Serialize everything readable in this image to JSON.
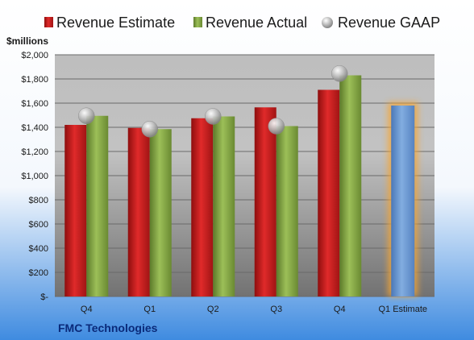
{
  "chart_data": {
    "type": "bar",
    "categories": [
      "Q4",
      "Q1",
      "Q2",
      "Q3",
      "Q4",
      "Q1 Estimate"
    ],
    "series": [
      {
        "name": "Revenue Estimate",
        "kind": "bar",
        "color": "#D42020",
        "values": [
          1420,
          1395,
          1475,
          1565,
          1710,
          null
        ]
      },
      {
        "name": "Revenue Actual",
        "kind": "bar",
        "color": "#86A844",
        "values": [
          1495,
          1385,
          1490,
          1410,
          1830,
          null
        ]
      },
      {
        "name": "Revenue GAAP",
        "kind": "marker",
        "color": "#B8B8B8",
        "values": [
          1495,
          1385,
          1490,
          1410,
          1845,
          null
        ]
      }
    ],
    "estimate_bar": {
      "category": "Q1 Estimate",
      "value": 1580,
      "color": "#6C9BD2",
      "glow_color": "#F7A631"
    },
    "ylabel": "$millions",
    "ylim": [
      0,
      2000
    ],
    "y_ticks": [
      0,
      200,
      400,
      600,
      800,
      1000,
      1200,
      1400,
      1600,
      1800,
      2000
    ],
    "y_tick_labels": [
      "$-",
      "$200",
      "$400",
      "$600",
      "$800",
      "$1,000",
      "$1,200",
      "$1,400",
      "$1,600",
      "$1,800",
      "$2,000"
    ],
    "legend_position": "top",
    "grid": true,
    "company": "FMC Technologies"
  },
  "colors": {
    "background_top": "#FFFFFF",
    "background_bottom": "#3F8BE0",
    "plot_top": "#BEBEBE",
    "plot_bottom": "#727272",
    "gridline": "#6A6A6A",
    "axis_text": "#1A1A1A",
    "company_text": "#0A2A7A"
  }
}
